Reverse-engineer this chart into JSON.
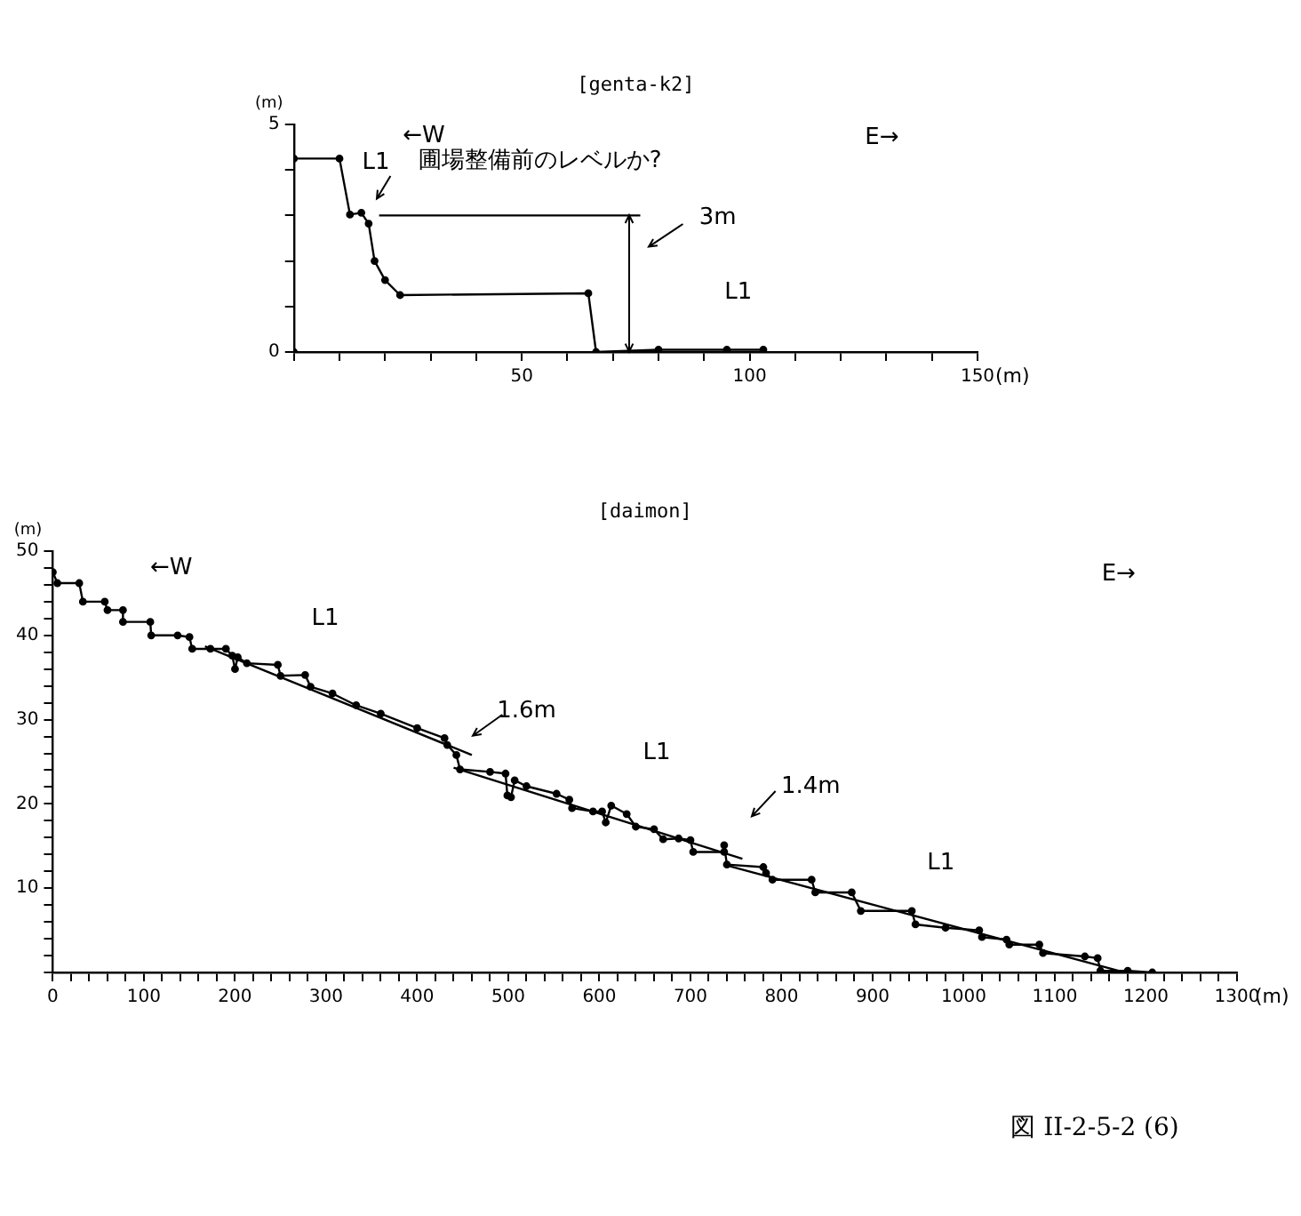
{
  "chart_data": [
    {
      "type": "line",
      "title": "[genta-k2]",
      "xlabel": "(m)",
      "ylabel": "(m)",
      "xlim": [
        0,
        150
      ],
      "ylim": [
        0,
        5
      ],
      "xticks": [
        {
          "value": 0,
          "label": null
        },
        {
          "value": 10,
          "label": null
        },
        {
          "value": 20,
          "label": null
        },
        {
          "value": 30,
          "label": null
        },
        {
          "value": 40,
          "label": null
        },
        50,
        {
          "value": 60,
          "label": null
        },
        {
          "value": 70,
          "label": null
        },
        {
          "value": 80,
          "label": null
        },
        {
          "value": 90,
          "label": null
        },
        100,
        {
          "value": 110,
          "label": null
        },
        {
          "value": 120,
          "label": null
        },
        {
          "value": 130,
          "label": null
        },
        {
          "value": 140,
          "label": null
        },
        150
      ],
      "yticks": [
        0,
        {
          "value": 1,
          "label": null
        },
        {
          "value": 2,
          "label": null
        },
        {
          "value": 3,
          "label": null
        },
        {
          "value": 4,
          "label": null
        },
        5
      ],
      "grid": false,
      "legend": false,
      "marker": "circle",
      "line_style": "solid",
      "series": [
        {
          "color": "#000000",
          "x": [
            0,
            0,
            10,
            12.3,
            14.8,
            16.4,
            17.7,
            20,
            23.3,
            64.6,
            66.3,
            80,
            95,
            103
          ],
          "values": [
            0,
            4.25,
            4.25,
            3.02,
            3.06,
            2.82,
            2,
            1.58,
            1.25,
            1.29,
            0,
            0.05,
            0.05,
            0.05
          ]
        },
        {
          "color": "#000000",
          "marker": "none",
          "x": [
            18.7,
            76
          ],
          "values": [
            3,
            3
          ]
        }
      ],
      "annotations": [
        "←W",
        "E→",
        "L1",
        "圃場整備前のレベルか?",
        "3m",
        "L1"
      ]
    },
    {
      "type": "line",
      "title": "[daimon]",
      "xlabel": "(m)",
      "ylabel": "(m)",
      "xlim": [
        0,
        1300
      ],
      "ylim": [
        0,
        50
      ],
      "xticks": [
        0,
        {
          "value": 20,
          "label": null
        },
        {
          "value": 40,
          "label": null
        },
        {
          "value": 60,
          "label": null
        },
        {
          "value": 80,
          "label": null
        },
        100,
        {
          "value": 120,
          "label": null
        },
        {
          "value": 140,
          "label": null
        },
        {
          "value": 160,
          "label": null
        },
        {
          "value": 180,
          "label": null
        },
        200,
        {
          "value": 220,
          "label": null
        },
        {
          "value": 240,
          "label": null
        },
        {
          "value": 260,
          "label": null
        },
        {
          "value": 280,
          "label": null
        },
        300,
        {
          "value": 320,
          "label": null
        },
        {
          "value": 340,
          "label": null
        },
        {
          "value": 360,
          "label": null
        },
        {
          "value": 380,
          "label": null
        },
        400,
        {
          "value": 420,
          "label": null
        },
        {
          "value": 440,
          "label": null
        },
        {
          "value": 460,
          "label": null
        },
        {
          "value": 480,
          "label": null
        },
        500,
        {
          "value": 520,
          "label": null
        },
        {
          "value": 540,
          "label": null
        },
        {
          "value": 560,
          "label": null
        },
        {
          "value": 580,
          "label": null
        },
        600,
        {
          "value": 620,
          "label": null
        },
        {
          "value": 640,
          "label": null
        },
        {
          "value": 660,
          "label": null
        },
        {
          "value": 680,
          "label": null
        },
        700,
        {
          "value": 720,
          "label": null
        },
        {
          "value": 740,
          "label": null
        },
        {
          "value": 760,
          "label": null
        },
        {
          "value": 780,
          "label": null
        },
        800,
        {
          "value": 820,
          "label": null
        },
        {
          "value": 840,
          "label": null
        },
        {
          "value": 860,
          "label": null
        },
        {
          "value": 880,
          "label": null
        },
        900,
        {
          "value": 920,
          "label": null
        },
        {
          "value": 940,
          "label": null
        },
        {
          "value": 960,
          "label": null
        },
        {
          "value": 980,
          "label": null
        },
        1000,
        {
          "value": 1020,
          "label": null
        },
        {
          "value": 1040,
          "label": null
        },
        {
          "value": 1060,
          "label": null
        },
        {
          "value": 1080,
          "label": null
        },
        1100,
        {
          "value": 1120,
          "label": null
        },
        {
          "value": 1140,
          "label": null
        },
        {
          "value": 1160,
          "label": null
        },
        {
          "value": 1180,
          "label": null
        },
        1200,
        {
          "value": 1220,
          "label": null
        },
        {
          "value": 1240,
          "label": null
        },
        {
          "value": 1260,
          "label": null
        },
        {
          "value": 1280,
          "label": null
        },
        1300
      ],
      "yticks": [
        {
          "value": 0,
          "label": null
        },
        {
          "value": 2,
          "label": null
        },
        {
          "value": 4,
          "label": null
        },
        {
          "value": 6,
          "label": null
        },
        {
          "value": 8,
          "label": null
        },
        10,
        {
          "value": 12,
          "label": null
        },
        {
          "value": 14,
          "label": null
        },
        {
          "value": 16,
          "label": null
        },
        {
          "value": 18,
          "label": null
        },
        20,
        {
          "value": 22,
          "label": null
        },
        {
          "value": 24,
          "label": null
        },
        {
          "value": 26,
          "label": null
        },
        {
          "value": 28,
          "label": null
        },
        30,
        {
          "value": 32,
          "label": null
        },
        {
          "value": 34,
          "label": null
        },
        {
          "value": 36,
          "label": null
        },
        {
          "value": 38,
          "label": null
        },
        40,
        {
          "value": 42,
          "label": null
        },
        {
          "value": 44,
          "label": null
        },
        {
          "value": 46,
          "label": null
        },
        {
          "value": 48,
          "label": null
        },
        50
      ],
      "grid": false,
      "legend": false,
      "marker": "circle",
      "line_style": "solid",
      "series": [
        {
          "color": "#000000",
          "x": [
            0,
            5,
            29,
            33,
            57,
            60,
            77,
            77,
            107,
            108,
            137,
            150,
            153,
            173,
            190,
            197,
            200,
            203,
            213,
            247,
            250,
            277,
            283,
            307,
            333,
            360,
            400,
            430,
            433,
            443,
            447,
            480,
            497,
            499,
            503,
            507,
            520,
            553,
            567,
            570,
            593,
            603,
            607,
            613,
            630,
            640,
            660,
            670,
            687,
            700,
            703,
            737,
            737,
            740,
            780,
            783,
            790,
            833,
            837,
            877,
            887,
            943,
            947,
            980,
            1017,
            1020,
            1047,
            1050,
            1083,
            1087,
            1133,
            1147,
            1150,
            1180,
            1207
          ],
          "values": [
            47.5,
            46.2,
            46.2,
            44,
            44,
            43,
            43,
            41.6,
            41.6,
            40,
            40,
            39.8,
            38.4,
            38.4,
            38.4,
            37.6,
            36,
            37.4,
            36.7,
            36.5,
            35.2,
            35.3,
            33.9,
            33.1,
            31.7,
            30.7,
            29,
            27.8,
            27,
            25.8,
            24.1,
            23.8,
            23.6,
            21,
            20.8,
            22.8,
            22.1,
            21.2,
            20.5,
            19.5,
            19.1,
            19.1,
            17.8,
            19.8,
            18.8,
            17.3,
            17,
            15.8,
            15.9,
            15.7,
            14.3,
            14.3,
            15.1,
            12.8,
            12.5,
            11.8,
            11,
            11,
            9.5,
            9.5,
            7.3,
            7.3,
            5.7,
            5.3,
            5,
            4.2,
            3.9,
            3.3,
            3.3,
            2.3,
            1.9,
            1.7,
            0.2,
            0.2,
            0
          ]
        },
        {
          "color": "#000000",
          "marker": "none",
          "x": [
            167,
            460
          ],
          "values": [
            38.7,
            25.8
          ]
        },
        {
          "color": "#000000",
          "marker": "none",
          "x": [
            440,
            757
          ],
          "values": [
            24.3,
            13.5
          ]
        },
        {
          "color": "#000000",
          "marker": "none",
          "x": [
            740,
            1170
          ],
          "values": [
            12.7,
            0.2
          ]
        }
      ],
      "annotations": [
        "←W",
        "E→",
        "L1",
        "1.6m",
        "L1",
        "1.4m",
        "L1",
        "図 II-2-5-2 (6)"
      ]
    }
  ]
}
